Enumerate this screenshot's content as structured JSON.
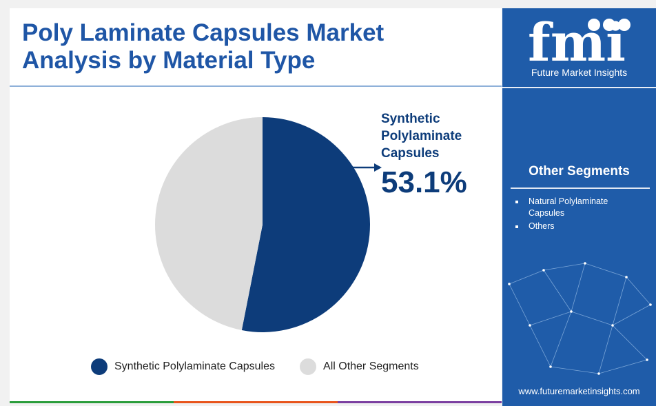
{
  "title_line1": "Poly Laminate Capsules Market",
  "title_line2": "Analysis by Material Type",
  "callout": {
    "label_line1": "Synthetic",
    "label_line2": "Polylaminate",
    "label_line3": "Capsules",
    "value": "53.1%"
  },
  "colors": {
    "title": "#1f56a6",
    "primary_slice": "#0d3c7a",
    "other_slice": "#dcdcdc",
    "side_panel": "#1f5ca9",
    "bottom_bar": [
      "#2a9d3a",
      "#e8541b",
      "#7b3fa0"
    ]
  },
  "chart_data": {
    "type": "pie",
    "title": "",
    "labels": [
      "Synthetic Polylaminate Capsules",
      "All Other Segments"
    ],
    "values": [
      53.1,
      46.9
    ],
    "start_angle_deg": 0,
    "direction": "clockwise",
    "legend_position": "bottom"
  },
  "legend": {
    "item1": "Synthetic Polylaminate Capsules",
    "item2": "All Other Segments"
  },
  "sidebar": {
    "logo_text": "fmi",
    "logo_sub": "Future Market Insights",
    "other_segments_title": "Other Segments",
    "items": [
      "Natural Polylaminate Capsules",
      "Others"
    ],
    "url": "www.futuremarketinsights.com"
  }
}
